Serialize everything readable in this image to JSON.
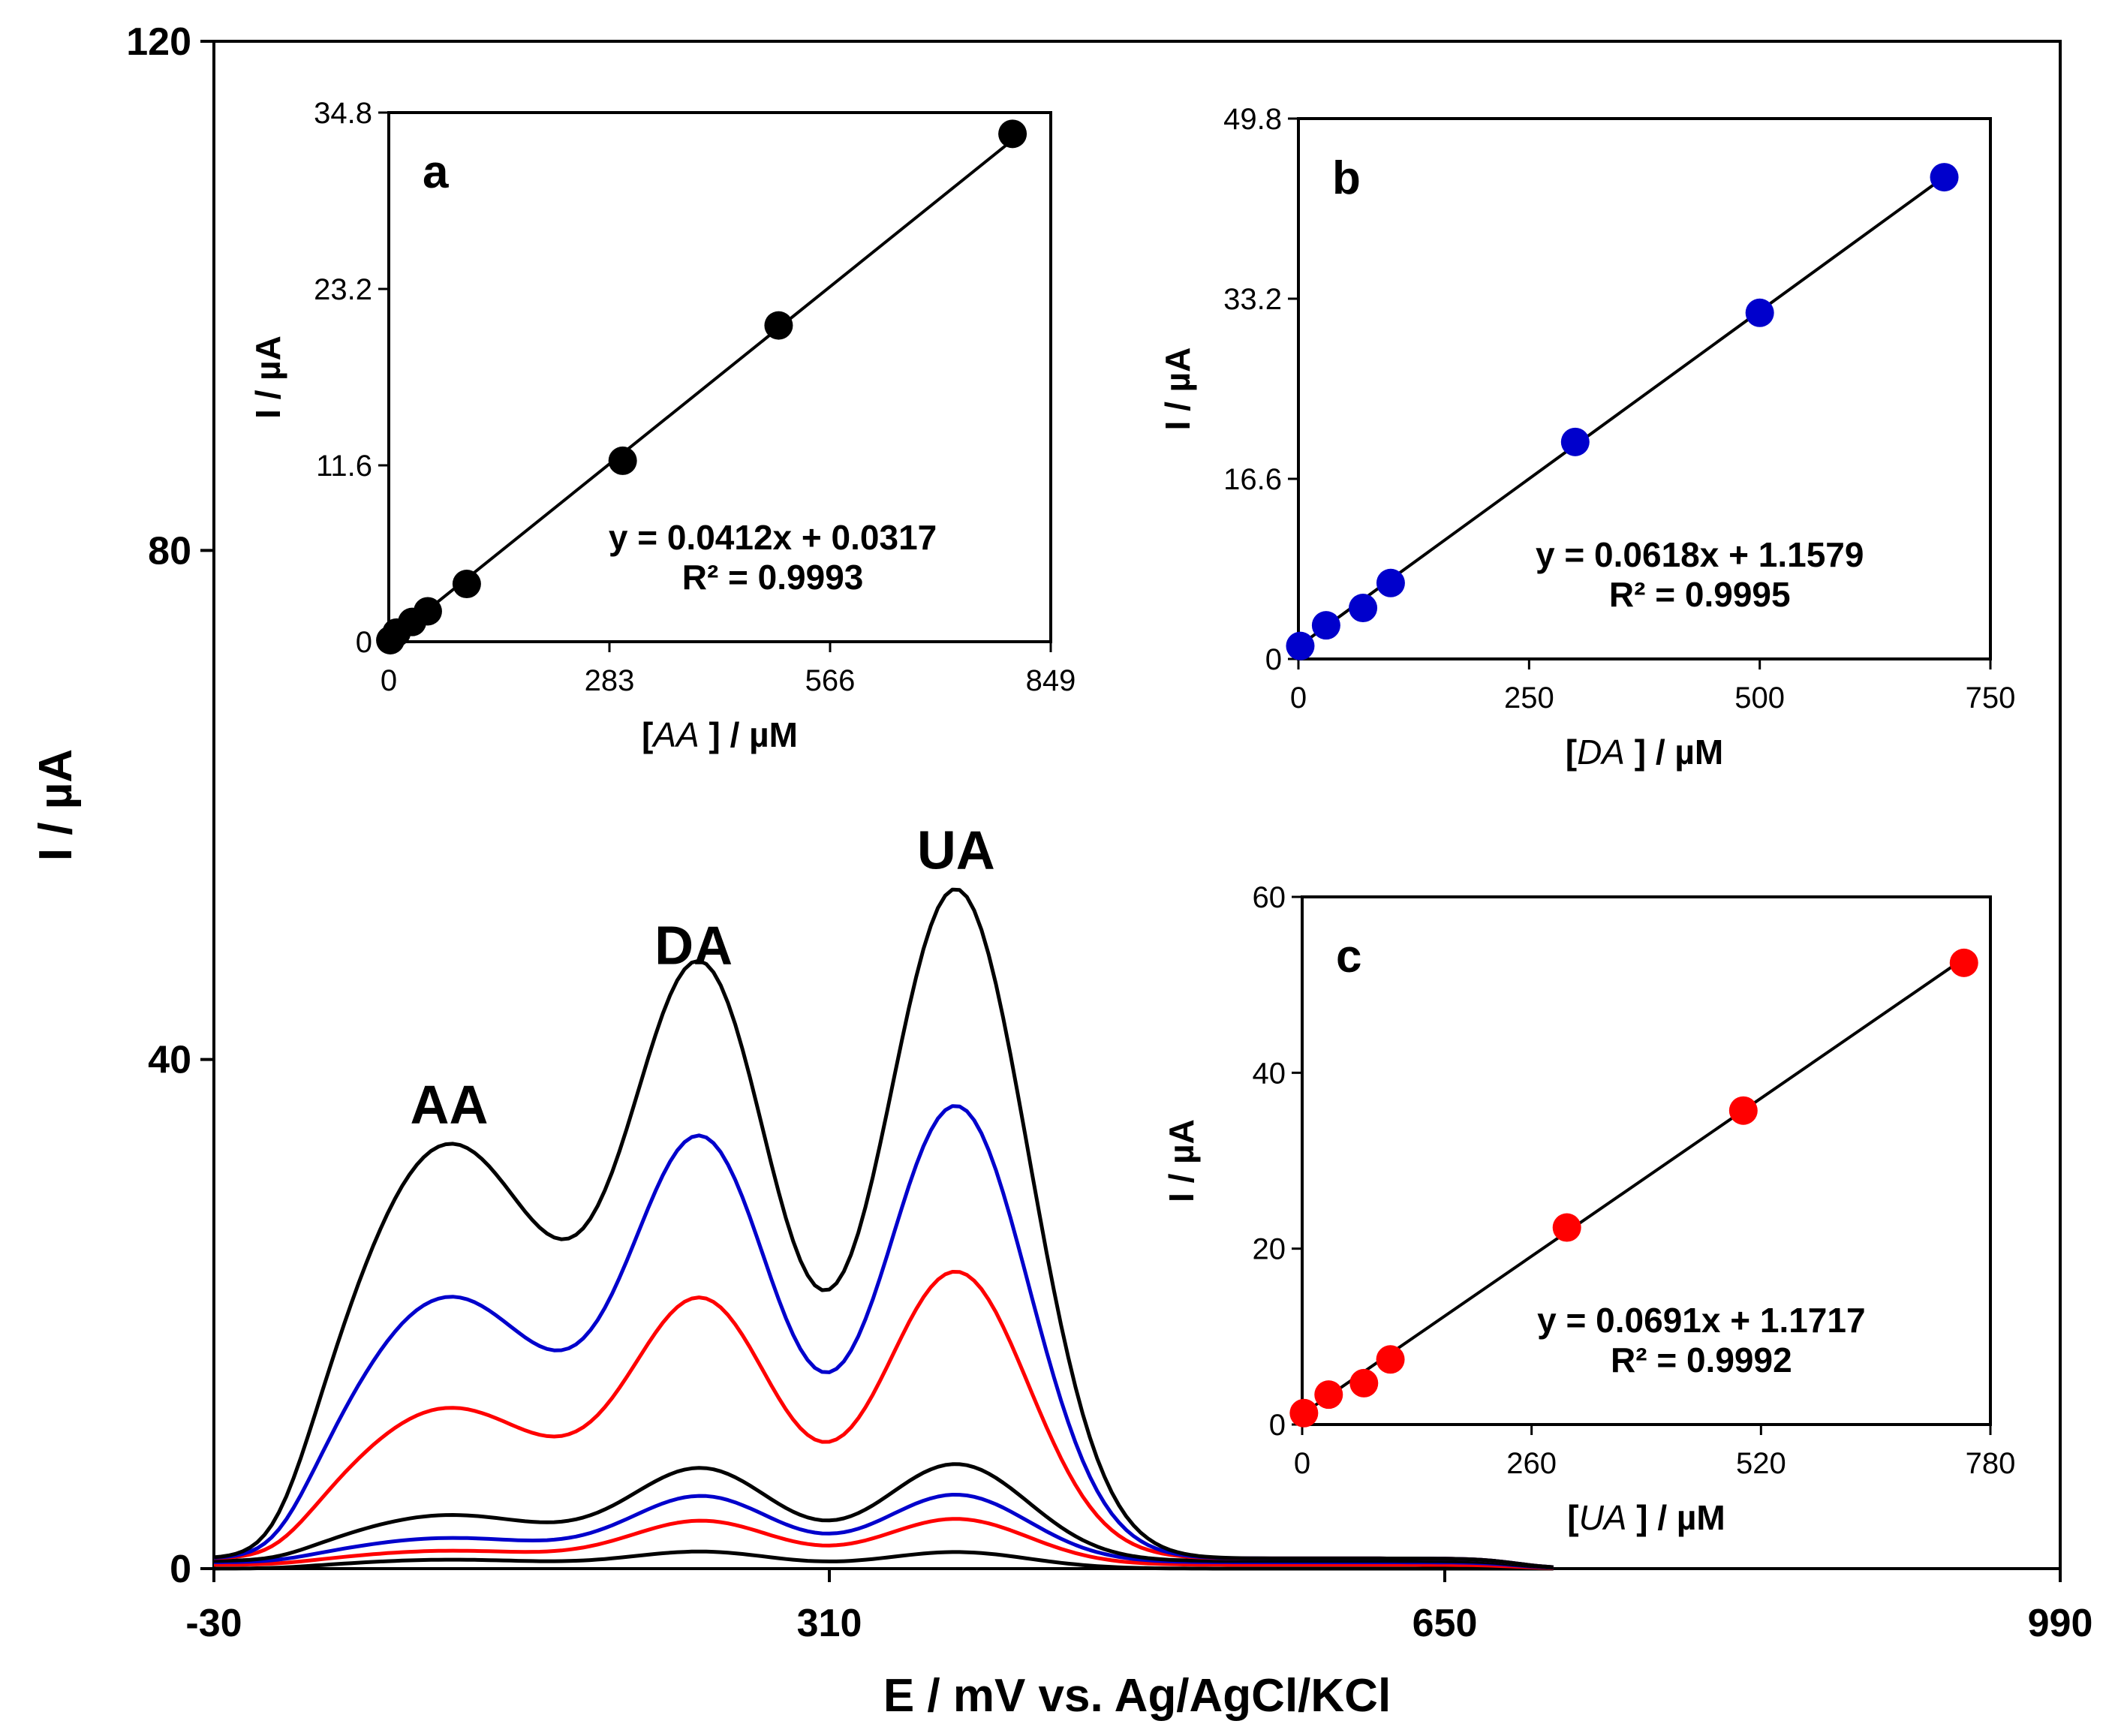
{
  "chart_data": [
    {
      "id": "main",
      "type": "line",
      "xlabel": "E / mV vs. Ag/AgCl/KCl",
      "ylabel": "I / µA",
      "xlim": [
        -30,
        990
      ],
      "ylim": [
        0,
        120
      ],
      "xticks": [
        "-30",
        "310",
        "650",
        "990"
      ],
      "yticks": [
        "0",
        "40",
        "80",
        "120"
      ],
      "xtick_values": [
        -30,
        310,
        650,
        990
      ],
      "ytick_values": [
        0,
        40,
        80,
        120
      ],
      "annotations": [
        {
          "text": "AA",
          "x": 100,
          "y": 35
        },
        {
          "text": "DA",
          "x": 235,
          "y": 47.5
        },
        {
          "text": "UA",
          "x": 380,
          "y": 55
        }
      ],
      "series": [
        {
          "name": "curve 1",
          "color": "#000000",
          "baseline": 0.0,
          "aa": 0.7,
          "da": 1.3,
          "ua": 1.3
        },
        {
          "name": "curve 2",
          "color": "#ff0000",
          "baseline": 0.3,
          "aa": 1.1,
          "da": 3.4,
          "ua": 3.6
        },
        {
          "name": "curve 3",
          "color": "#0000cc",
          "baseline": 0.5,
          "aa": 1.9,
          "da": 5.1,
          "ua": 5.3
        },
        {
          "name": "curve 4",
          "color": "#000000",
          "baseline": 0.6,
          "aa": 3.6,
          "da": 7.1,
          "ua": 7.6
        },
        {
          "name": "curve 5",
          "color": "#ff0000",
          "baseline": 0.8,
          "aa": 11.8,
          "da": 19.8,
          "ua": 22.5
        },
        {
          "name": "curve 6",
          "color": "#0000cc",
          "baseline": 0.8,
          "aa": 20.5,
          "da": 32.0,
          "ua": 35.5
        },
        {
          "name": "curve 7",
          "color": "#000000",
          "baseline": 0.8,
          "aa": 32.5,
          "da": 45.0,
          "ua": 52.5
        }
      ]
    },
    {
      "id": "a",
      "type": "scatter",
      "panel_label": "a",
      "xlabel_prefix": "[",
      "xlabel_species": "AA",
      "xlabel_suffix": " ] / µM",
      "ylabel": "I / µA",
      "xlim": [
        0,
        849
      ],
      "ylim": [
        0,
        34.8
      ],
      "xticks": [
        "0",
        "283",
        "566",
        "849"
      ],
      "yticks": [
        "0",
        "11.6",
        "23.2",
        "34.8"
      ],
      "xtick_values": [
        0,
        283,
        566,
        849
      ],
      "ytick_values": [
        0,
        11.6,
        23.2,
        34.8
      ],
      "point_color": "#000000",
      "equation": "y = 0.0412x + 0.0317",
      "r2": "R² = 0.9993",
      "fit": {
        "slope": 0.0412,
        "intercept": 0.0317
      },
      "x": [
        2,
        10,
        30,
        50,
        100,
        300,
        500,
        800
      ],
      "y": [
        0.1,
        0.6,
        1.3,
        2.0,
        3.8,
        11.9,
        20.8,
        33.4
      ]
    },
    {
      "id": "b",
      "type": "scatter",
      "panel_label": "b",
      "xlabel_prefix": "[",
      "xlabel_species": "DA",
      "xlabel_suffix": " ] / µM",
      "ylabel": "I / µA",
      "xlim": [
        0,
        750
      ],
      "ylim": [
        0,
        49.8
      ],
      "xticks": [
        "0",
        "250",
        "500",
        "750"
      ],
      "yticks": [
        "0",
        "16.6",
        "33.2",
        "49.8"
      ],
      "xtick_values": [
        0,
        250,
        500,
        750
      ],
      "ytick_values": [
        0,
        16.6,
        33.2,
        49.8
      ],
      "point_color": "#0000cc",
      "equation": "y = 0.0618x + 1.1579",
      "r2": "R² = 0.9995",
      "fit": {
        "slope": 0.0618,
        "intercept": 1.1579
      },
      "x": [
        2,
        30,
        70,
        100,
        300,
        500,
        700
      ],
      "y": [
        1.2,
        3.1,
        4.7,
        7.0,
        20.0,
        31.9,
        44.4
      ]
    },
    {
      "id": "c",
      "type": "scatter",
      "panel_label": "c",
      "xlabel_prefix": "[",
      "xlabel_species": "UA",
      "xlabel_suffix": " ] / µM",
      "ylabel": "I / µA",
      "xlim": [
        0,
        780
      ],
      "ylim": [
        0,
        60
      ],
      "xticks": [
        "0",
        "260",
        "520",
        "780"
      ],
      "yticks": [
        "0",
        "20",
        "40",
        "60"
      ],
      "xtick_values": [
        0,
        260,
        520,
        780
      ],
      "ytick_values": [
        0,
        20,
        40,
        60
      ],
      "point_color": "#ff0000",
      "equation": "y = 0.0691x + 1.1717",
      "r2": "R² = 0.9992",
      "fit": {
        "slope": 0.0691,
        "intercept": 1.1717
      },
      "x": [
        2,
        30,
        70,
        100,
        300,
        500,
        750
      ],
      "y": [
        1.3,
        3.4,
        4.7,
        7.4,
        22.4,
        35.7,
        52.5
      ]
    }
  ]
}
